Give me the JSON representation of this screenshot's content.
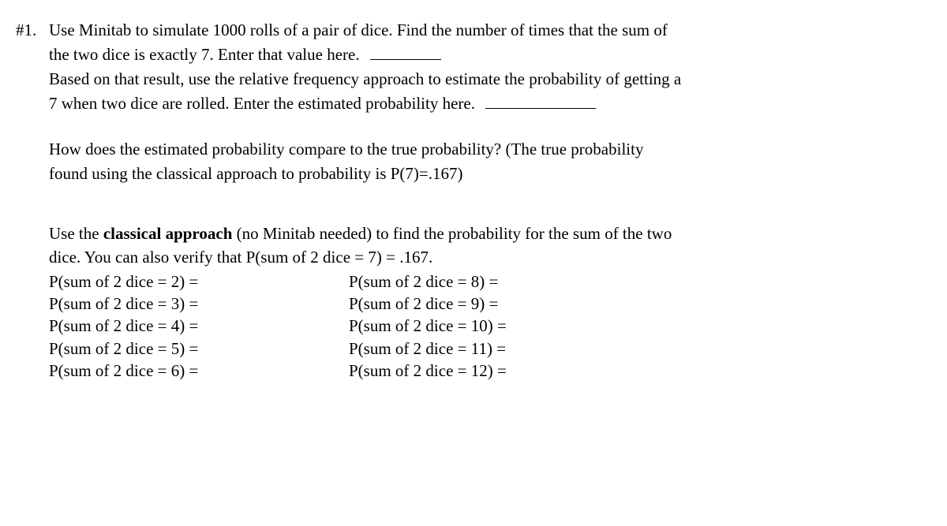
{
  "problem_number": "#1.",
  "intro": {
    "line1a": "Use Minitab to simulate 1000 rolls of a pair of dice.  Find the number of times that the sum of",
    "line1b": "the two dice is exactly 7.  Enter that value here.",
    "line2a": "Based on that result, use the relative frequency approach to estimate the probability of getting a",
    "line2b": "7 when two dice are rolled.  Enter the estimated probability here."
  },
  "compare": {
    "line1": "How does the estimated probability compare to the true probability?  (The true probability",
    "line2": "found using the classical approach to probability is P(7)=.167)"
  },
  "classical": {
    "line1a_pre": "Use the ",
    "line1a_bold": "classical approach",
    "line1a_post": " (no Minitab needed) to find the probability for the sum of the two",
    "line1b": "dice.  You can also verify that P(sum of 2 dice = 7) = .167."
  },
  "left_col": [
    "P(sum of 2 dice = 2) =",
    "P(sum of 2 dice = 3) =",
    "P(sum of 2 dice = 4) =",
    "P(sum of 2 dice = 5) =",
    "P(sum of 2 dice = 6) ="
  ],
  "right_col": [
    "P(sum of 2 dice = 8) =",
    "P(sum of 2 dice = 9) =",
    "P(sum of 2 dice = 10) =",
    "P(sum of 2 dice = 11) =",
    "P(sum of 2 dice = 12) ="
  ]
}
